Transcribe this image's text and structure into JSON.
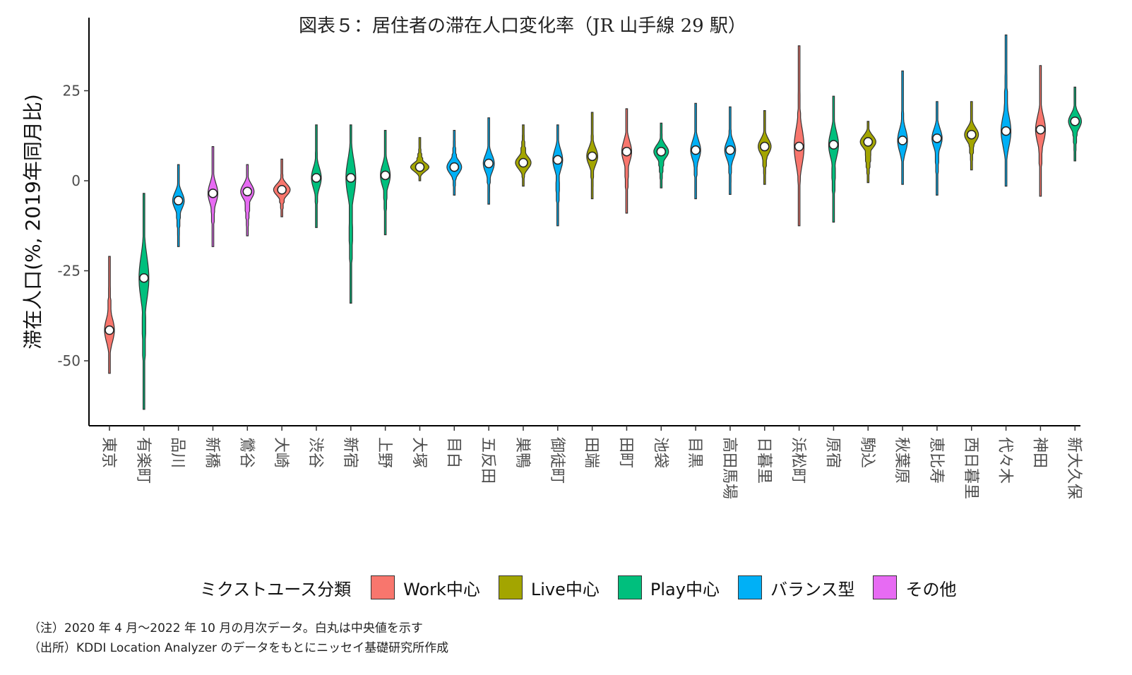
{
  "title": "図表５：居住者の滞在人口変化率（JR 山手線 29 駅）",
  "chart_data": {
    "type": "violin",
    "ylabel": "滞在人口(%, 2019年同月比)",
    "xlabel": "",
    "ylim": [
      -63,
      40
    ],
    "yticks": [
      25,
      0,
      -25,
      -50
    ],
    "ytick_labels": [
      "25",
      "0",
      "-25",
      "-50"
    ],
    "categories": [
      "東京",
      "有楽町",
      "品川",
      "新橋",
      "鶯谷",
      "大崎",
      "渋谷",
      "新宿",
      "上野",
      "大塚",
      "目白",
      "五反田",
      "巣鴨",
      "御徒町",
      "田端",
      "田町",
      "池袋",
      "目黒",
      "高田馬場",
      "日暮里",
      "浜松町",
      "原宿",
      "駒込",
      "秋葉原",
      "恵比寿",
      "西日暮里",
      "代々木",
      "神田",
      "新大久保"
    ],
    "groups": [
      "Work中心",
      "Play中心",
      "バランス型",
      "その他",
      "その他",
      "Work中心",
      "Play中心",
      "Play中心",
      "Play中心",
      "Live中心",
      "バランス型",
      "バランス型",
      "Live中心",
      "バランス型",
      "Live中心",
      "Work中心",
      "Play中心",
      "バランス型",
      "バランス型",
      "Live中心",
      "Work中心",
      "Play中心",
      "Live中心",
      "バランス型",
      "バランス型",
      "Live中心",
      "バランス型",
      "Work中心",
      "Play中心"
    ],
    "medians": [
      -41.5,
      -27,
      -5.5,
      -3.5,
      -3,
      -2.5,
      0.8,
      0.8,
      1.5,
      3.8,
      3.8,
      4.8,
      5,
      5.8,
      6.8,
      8.1,
      8.1,
      8.5,
      8.5,
      9.5,
      9.5,
      10,
      10.8,
      11.2,
      11.8,
      12.8,
      13.8,
      14.2,
      16.5
    ],
    "mins": [
      -53.5,
      -63.5,
      -18.3,
      -18.3,
      -15.3,
      -10,
      -13,
      -34,
      -15,
      0,
      -4,
      -6.5,
      -1.5,
      -12.5,
      -5,
      -9,
      -2,
      -5,
      -3.8,
      -1,
      -12.5,
      -11.5,
      -0.5,
      -1,
      -4,
      3,
      -1.5,
      -4.3,
      5.5
    ],
    "maxs": [
      -21,
      -3.5,
      4.5,
      9.5,
      4.5,
      6,
      15.5,
      15.5,
      14,
      12,
      14,
      17.5,
      15.5,
      15.5,
      19,
      20,
      16,
      21.5,
      20.5,
      19.5,
      37.5,
      23.5,
      16.5,
      30.5,
      22,
      22,
      40.5,
      32,
      26
    ],
    "legend": {
      "title": "ミクストユース分類",
      "entries": [
        {
          "label": "Work中心",
          "color": "#F8766D"
        },
        {
          "label": "Live中心",
          "color": "#A3A500"
        },
        {
          "label": "Play中心",
          "color": "#00BF7D"
        },
        {
          "label": "バランス型",
          "color": "#00B0F6"
        },
        {
          "label": "その他",
          "color": "#E76BF3"
        }
      ],
      "placement": "bottom"
    },
    "median_marker": "white-circle"
  },
  "notes": [
    "（注）2020 年 4 月～2022 年 10 月の月次データ。白丸は中央値を示す",
    "（出所）KDDI Location Analyzer のデータをもとにニッセイ基礎研究所作成"
  ]
}
